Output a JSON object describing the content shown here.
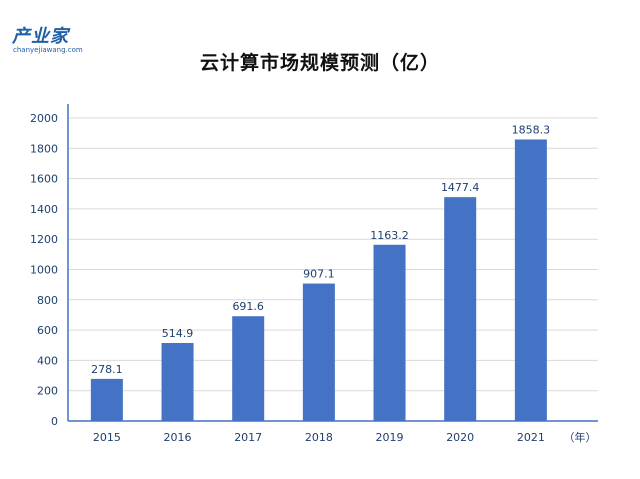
{
  "logo": {
    "text": "产业家",
    "subtext": "chanyejiawang.com"
  },
  "chart_data": {
    "type": "bar",
    "title": "云计算市场规模预测（亿）",
    "categories": [
      "2015",
      "2016",
      "2017",
      "2018",
      "2019",
      "2020",
      "2021"
    ],
    "values": [
      278.1,
      514.9,
      691.6,
      907.1,
      1163.2,
      1477.4,
      1858.3
    ],
    "value_labels": [
      "278.1",
      "514.9",
      "691.6",
      "907.1",
      "1163.2",
      "1477.4",
      "1858.3"
    ],
    "x_unit_label": "（年）",
    "xlabel": "",
    "ylabel": "",
    "ylim": [
      0,
      2000
    ],
    "yticks": [
      "0",
      "200",
      "400",
      "600",
      "800",
      "1000",
      "1200",
      "1400",
      "1600",
      "1800",
      "2000"
    ],
    "grid": true,
    "bar_color": "#4472c4",
    "grid_color": "#d9d9d9",
    "axis_text_color": "#1f3f6e"
  }
}
